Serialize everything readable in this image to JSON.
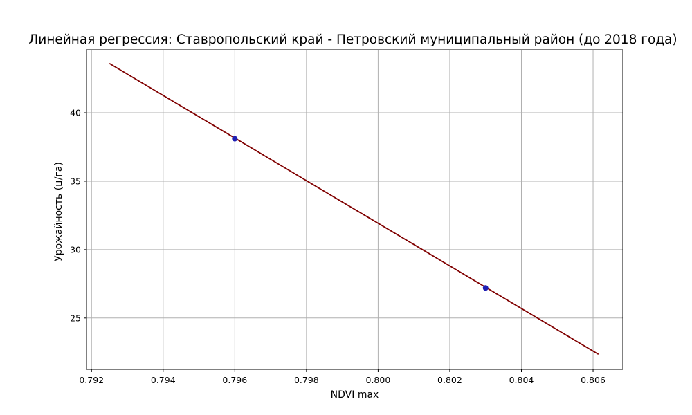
{
  "chart_data": {
    "type": "scatter",
    "title": "Линейная регрессия: Ставропольский край - Петровский муниципальный район (до 2018 года)",
    "xlabel": "NDVI max",
    "ylabel": "Урожайность (ц/га)",
    "xlim": [
      0.79186,
      0.80683
    ],
    "ylim": [
      21.25,
      44.6
    ],
    "xticks": [
      0.792,
      0.794,
      0.796,
      0.798,
      0.8,
      0.802,
      0.804,
      0.806
    ],
    "xtick_labels": [
      "0.792",
      "0.794",
      "0.796",
      "0.798",
      "0.800",
      "0.802",
      "0.804",
      "0.806"
    ],
    "yticks": [
      25,
      30,
      35,
      40
    ],
    "ytick_labels": [
      "25",
      "30",
      "35",
      "40"
    ],
    "grid": true,
    "series": [
      {
        "kind": "points",
        "x": [
          0.796,
          0.803
        ],
        "y": [
          38.1,
          27.2
        ],
        "color": "#1f1fb4"
      },
      {
        "kind": "line",
        "x": [
          0.7925,
          0.80615
        ],
        "y": [
          43.6,
          22.35
        ],
        "color": "#800000"
      }
    ]
  }
}
